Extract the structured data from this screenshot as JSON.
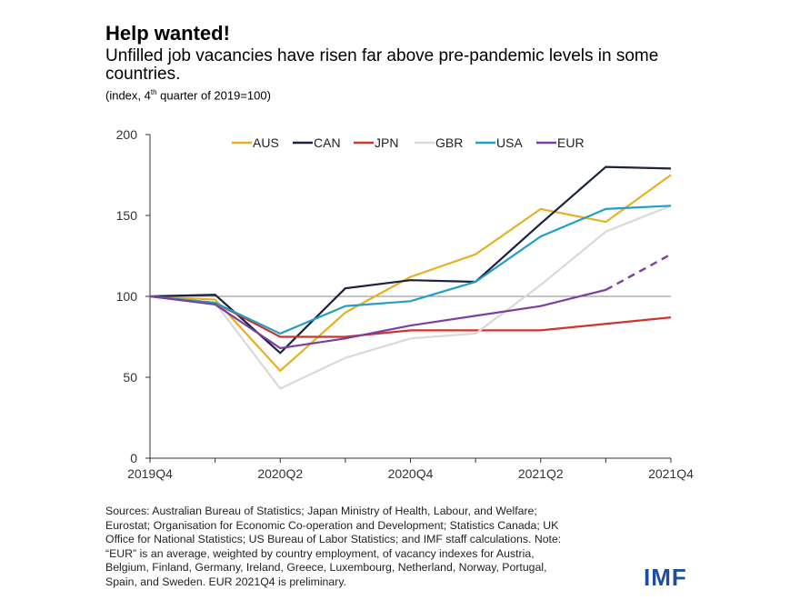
{
  "title": "Help wanted!",
  "subtitle": "Unfilled job vacancies have risen far above pre-pandemic levels in some countries.",
  "units_note": "(index, 4th quarter of 2019=100)",
  "source": "Sources: Australian Bureau of Statistics; Japan Ministry of Health, Labour, and Welfare; Eurostat; Organisation for Economic Co-operation and Development; Statistics Canada; UK Office for National Statistics; US Bureau of Labor Statistics; and IMF staff calculations. Note: “EUR” is an average, weighted by country employment, of vacancy indexes for Austria, Belgium, Finland, Germany, Ireland, Greece, Luxembourg, Netherland, Norway, Portugal, Spain, and Sweden. EUR 2021Q4 is preliminary.",
  "logo": "IMF",
  "chart_data": {
    "type": "line",
    "x": [
      "2019Q4",
      "2020Q1",
      "2020Q2",
      "2020Q3",
      "2020Q4",
      "2021Q1",
      "2021Q2",
      "2021Q3",
      "2021Q4"
    ],
    "x_tick_labels": [
      "2019Q4",
      "2020Q2",
      "2020Q4",
      "2021Q2",
      "2021Q4"
    ],
    "y_ticks": [
      0,
      50,
      100,
      150,
      200
    ],
    "ylim": [
      0,
      200
    ],
    "reference_line": 100,
    "legend_placement": "top",
    "series": [
      {
        "name": "AUS",
        "color": "#e8b020",
        "values": [
          100,
          98,
          54,
          90,
          112,
          126,
          154,
          146,
          175
        ]
      },
      {
        "name": "CAN",
        "color": "#1a2240",
        "values": [
          100,
          101,
          65,
          105,
          110,
          109,
          145,
          180,
          179
        ]
      },
      {
        "name": "JPN",
        "color": "#d0332b",
        "values": [
          100,
          96,
          75,
          75,
          79,
          79,
          79,
          83,
          87
        ]
      },
      {
        "name": "GBR",
        "color": "#d9d9d9",
        "values": [
          100,
          96,
          43,
          62,
          74,
          77,
          107,
          140,
          156
        ]
      },
      {
        "name": "USA",
        "color": "#20a0c8",
        "values": [
          100,
          96,
          77,
          94,
          97,
          109,
          137,
          154,
          156
        ]
      },
      {
        "name": "EUR",
        "color": "#7b3fa0",
        "values": [
          100,
          95,
          68,
          74,
          82,
          88,
          94,
          104,
          126
        ],
        "dashed_last_segment": true
      }
    ]
  }
}
